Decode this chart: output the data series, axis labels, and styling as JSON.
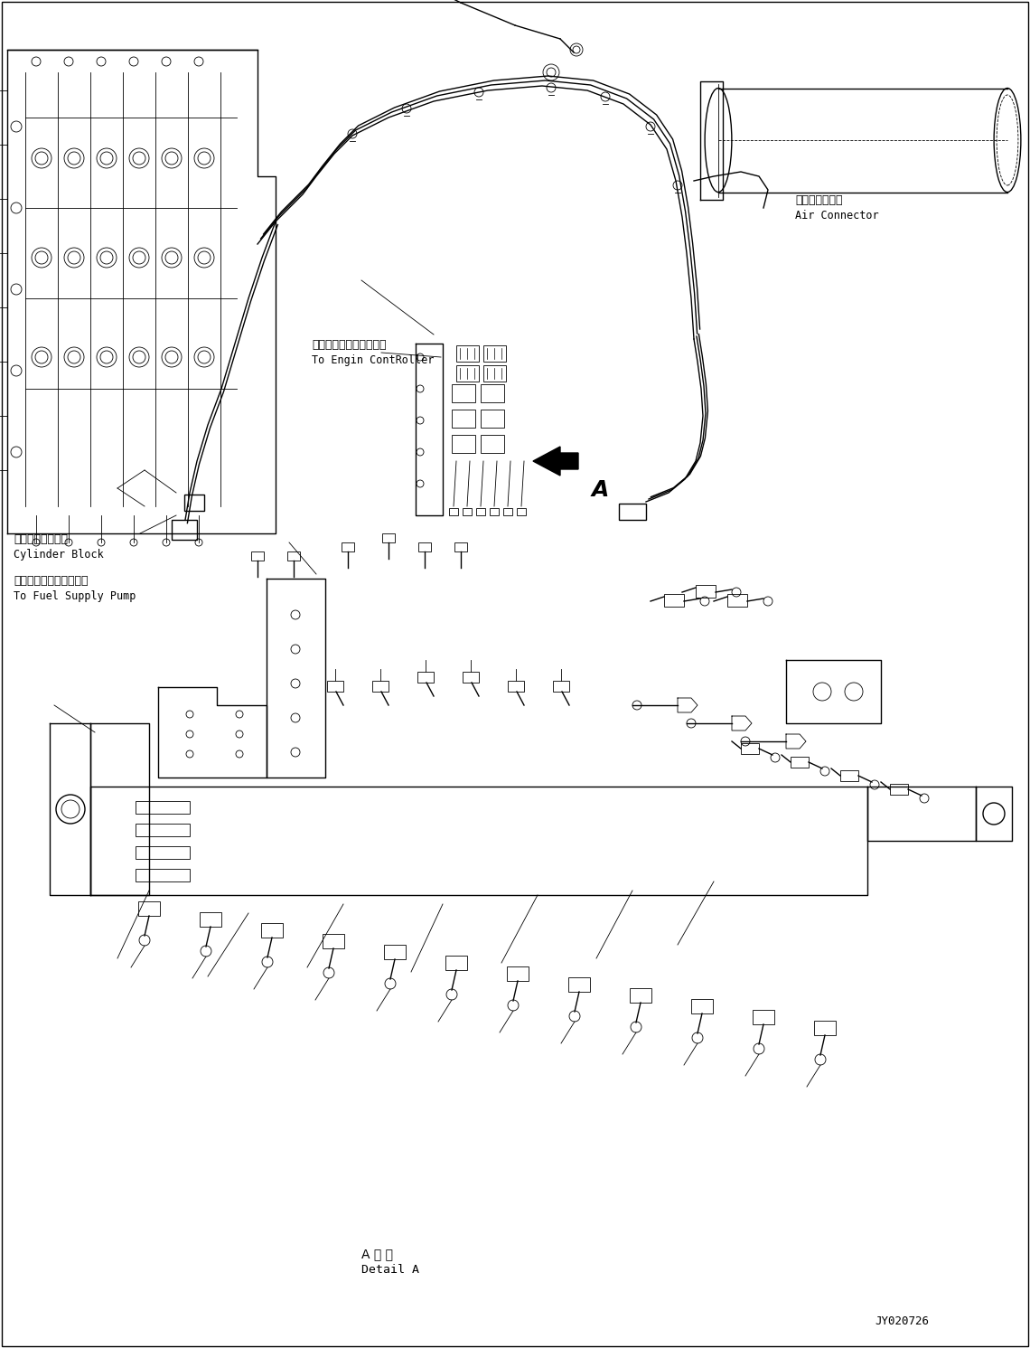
{
  "bg_color": "#ffffff",
  "line_color": "#000000",
  "fig_width": 11.4,
  "fig_height": 14.91,
  "dpi": 100,
  "labels": {
    "air_connector_jp": "エアーコネクタ",
    "air_connector_en": "Air Connector",
    "cylinder_block_jp": "シリンダブロック",
    "cylinder_block_en": "Cylinder Block",
    "engine_controller_jp": "エンジンコントローラヘ",
    "engine_controller_en": "To Engin ContRoller",
    "fuel_pump_jp": "フェルサプライポンプヘ",
    "fuel_pump_en": "To Fuel Supply Pump",
    "detail_a_jp": "A 詳 細",
    "detail_a_en": "Detail A",
    "part_number": "JY020726",
    "label_a": "A"
  }
}
